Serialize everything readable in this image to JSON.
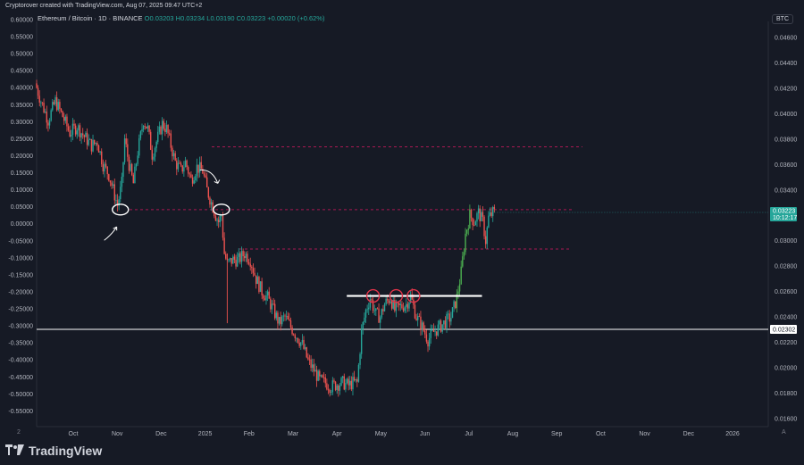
{
  "header": {
    "credit": "Cryptorover created with TradingView.com, Aug 07, 2025 09:47 UTC+2",
    "symbol": "Ethereum / Bitcoin · 1D · BINANCE",
    "ohlc": "O0.03203 H0.03234 L0.03190 C0.03223 +0.00020 (+0.62%)",
    "currency": "BTC"
  },
  "branding": {
    "logo_text": "TradingView",
    "logo_icon": "tradingview-logo-icon"
  },
  "footer": {
    "left_corner": "2",
    "right_corner": "A"
  },
  "chart_data": {
    "type": "candlestick",
    "left_axis": {
      "ticks": [
        "0.60000",
        "0.55000",
        "0.50000",
        "0.45000",
        "0.40000",
        "0.35000",
        "0.30000",
        "0.25000",
        "0.20000",
        "0.15000",
        "0.10000",
        "0.05000",
        "0.00000",
        "-0.05000",
        "-0.10000",
        "-0.15000",
        "-0.20000",
        "-0.25000",
        "-0.30000",
        "-0.35000",
        "-0.40000",
        "-0.45000",
        "-0.50000",
        "-0.55000"
      ]
    },
    "right_axis": {
      "ticks": [
        "0.04600",
        "0.04400",
        "0.04200",
        "0.04000",
        "0.03800",
        "0.03600",
        "0.03400",
        "0.03200",
        "0.03000",
        "0.02800",
        "0.02600",
        "0.02400",
        "0.02200",
        "0.02000",
        "0.01800",
        "0.01600"
      ],
      "ylim": [
        0.01535,
        0.04728
      ]
    },
    "x_axis": {
      "labels": [
        "Oct",
        "Nov",
        "Dec",
        "2025",
        "Feb",
        "Mar",
        "Apr",
        "May",
        "Jun",
        "Jul",
        "Aug",
        "Sep",
        "Oct",
        "Nov",
        "Dec",
        "2026"
      ]
    },
    "last_price": {
      "value": 0.03223,
      "label": "0.03223",
      "countdown": "10:12:17",
      "color": "#26a69a"
    },
    "horizontal_line": {
      "value": 0.02302,
      "label": "0.02302",
      "color": "#ffffff"
    },
    "dashed_levels": [
      {
        "value": 0.0374,
        "color": "#c2185b"
      },
      {
        "value": 0.03245,
        "color": "#c2185b"
      },
      {
        "value": 0.02935,
        "color": "#c2185b"
      }
    ],
    "resistance_line": {
      "value": 0.02565,
      "from": "2025-05-03",
      "to": "2025-07-22",
      "color": "#ffffff"
    },
    "price_path": [
      [
        "2024-09-24",
        0.0424
      ],
      [
        "2024-09-28",
        0.041
      ],
      [
        "2024-10-03",
        0.0395
      ],
      [
        "2024-10-08",
        0.041
      ],
      [
        "2024-10-13",
        0.0398
      ],
      [
        "2024-10-18",
        0.0385
      ],
      [
        "2024-10-23",
        0.039
      ],
      [
        "2024-10-28",
        0.0382
      ],
      [
        "2024-11-02",
        0.0375
      ],
      [
        "2024-11-06",
        0.0378
      ],
      [
        "2024-11-10",
        0.036
      ],
      [
        "2024-11-14",
        0.0352
      ],
      [
        "2024-11-17",
        0.034
      ],
      [
        "2024-11-20",
        0.0328
      ],
      [
        "2024-11-23",
        0.0345
      ],
      [
        "2024-11-25",
        0.038
      ],
      [
        "2024-11-28",
        0.036
      ],
      [
        "2024-12-01",
        0.0345
      ],
      [
        "2024-12-04",
        0.037
      ],
      [
        "2024-12-08",
        0.0395
      ],
      [
        "2024-12-11",
        0.0388
      ],
      [
        "2024-12-14",
        0.0368
      ],
      [
        "2024-12-17",
        0.0378
      ],
      [
        "2024-12-21",
        0.0392
      ],
      [
        "2024-12-24",
        0.0388
      ],
      [
        "2024-12-27",
        0.0375
      ],
      [
        "2024-12-30",
        0.0362
      ],
      [
        "2025-01-03",
        0.0355
      ],
      [
        "2025-01-06",
        0.0362
      ],
      [
        "2025-01-10",
        0.0348
      ],
      [
        "2025-01-14",
        0.0358
      ],
      [
        "2025-01-18",
        0.0355
      ],
      [
        "2025-01-21",
        0.034
      ],
      [
        "2025-01-24",
        0.033
      ],
      [
        "2025-01-27",
        0.032
      ],
      [
        "2025-01-29",
        0.0315
      ],
      [
        "2025-01-31",
        0.032
      ],
      [
        "2025-02-02",
        0.029
      ],
      [
        "2025-02-04",
        0.0282
      ],
      [
        "2025-02-08",
        0.0285
      ],
      [
        "2025-02-12",
        0.0285
      ],
      [
        "2025-02-16",
        0.029
      ],
      [
        "2025-02-20",
        0.0285
      ],
      [
        "2025-02-24",
        0.027
      ],
      [
        "2025-02-28",
        0.026
      ],
      [
        "2025-03-04",
        0.0255
      ],
      [
        "2025-03-08",
        0.0245
      ],
      [
        "2025-03-12",
        0.0235
      ],
      [
        "2025-03-16",
        0.024
      ],
      [
        "2025-03-20",
        0.0232
      ],
      [
        "2025-03-24",
        0.0225
      ],
      [
        "2025-03-28",
        0.0218
      ],
      [
        "2025-04-01",
        0.0205
      ],
      [
        "2025-04-05",
        0.0198
      ],
      [
        "2025-04-09",
        0.019
      ],
      [
        "2025-04-13",
        0.0188
      ],
      [
        "2025-04-17",
        0.0185
      ],
      [
        "2025-04-21",
        0.0187
      ],
      [
        "2025-04-25",
        0.0188
      ],
      [
        "2025-04-29",
        0.0186
      ],
      [
        "2025-05-02",
        0.0188
      ],
      [
        "2025-05-05",
        0.0188
      ],
      [
        "2025-05-08",
        0.0228
      ],
      [
        "2025-05-11",
        0.0245
      ],
      [
        "2025-05-14",
        0.0255
      ],
      [
        "2025-05-18",
        0.0242
      ],
      [
        "2025-05-21",
        0.024
      ],
      [
        "2025-05-24",
        0.025
      ],
      [
        "2025-05-28",
        0.0255
      ],
      [
        "2025-05-31",
        0.0245
      ],
      [
        "2025-06-04",
        0.0248
      ],
      [
        "2025-06-08",
        0.025
      ],
      [
        "2025-06-11",
        0.0256
      ],
      [
        "2025-06-15",
        0.024
      ],
      [
        "2025-06-19",
        0.0232
      ],
      [
        "2025-06-23",
        0.0222
      ],
      [
        "2025-06-27",
        0.0228
      ],
      [
        "2025-07-01",
        0.0232
      ],
      [
        "2025-07-05",
        0.0236
      ],
      [
        "2025-07-09",
        0.024
      ],
      [
        "2025-07-13",
        0.0255
      ],
      [
        "2025-07-16",
        0.0275
      ],
      [
        "2025-07-19",
        0.0305
      ],
      [
        "2025-07-22",
        0.032
      ],
      [
        "2025-07-25",
        0.0315
      ],
      [
        "2025-07-28",
        0.0322
      ],
      [
        "2025-07-31",
        0.0315
      ],
      [
        "2025-08-02",
        0.03
      ],
      [
        "2025-08-04",
        0.0318
      ],
      [
        "2025-08-07",
        0.0322
      ]
    ],
    "annotations": [
      {
        "type": "circle",
        "date": "2024-11-21",
        "value": 0.03245,
        "color": "#ffffff"
      },
      {
        "type": "circle",
        "date": "2025-01-30",
        "value": 0.03245,
        "color": "#ffffff"
      },
      {
        "type": "circle",
        "date": "2025-05-15",
        "value": 0.02565,
        "color": "#e0344a"
      },
      {
        "type": "circle",
        "date": "2025-05-31",
        "value": 0.02565,
        "color": "#e0344a"
      },
      {
        "type": "circle",
        "date": "2025-06-12",
        "value": 0.02565,
        "color": "#e0344a"
      },
      {
        "type": "arrow",
        "direction": "up-right",
        "date": "2024-11-16",
        "value": 0.0313,
        "color": "#ffffff"
      },
      {
        "type": "arrow",
        "direction": "down-right",
        "date": "2025-01-25",
        "value": 0.0348,
        "color": "#ffffff"
      }
    ],
    "colors": {
      "up": "#26a69a",
      "up_strong": "#4caf50",
      "down": "#ef5350",
      "grid": "#1f2330",
      "axis_text": "#b2b5be"
    }
  }
}
